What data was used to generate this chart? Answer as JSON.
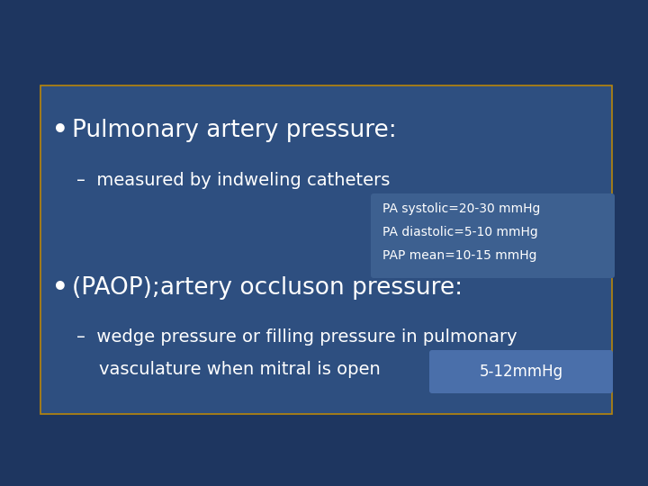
{
  "bg_color": "#2e4f80",
  "slide_bg": "#1e3660",
  "box_bg": "#2e4f80",
  "box_border": "#b8860b",
  "text_color": "#ffffff",
  "info_box1_bg": "#3d6090",
  "info_box2_bg": "#4a6faa",
  "bullet1": "Pulmonary artery pressure:",
  "sub1": "–  measured by indweling catheters",
  "info_lines": [
    "PA systolic=20-30 mmHg",
    "PA diastolic=5-10 mmHg",
    "PAP mean=10-15 mmHg"
  ],
  "bullet2": "(PAOP);artery occluson pressure:",
  "sub2_line1": "–  wedge pressure or filling pressure in pulmonary",
  "sub2_line2": "    vasculature when mitral is open",
  "info2": "5-12mmHg",
  "figw": 7.2,
  "figh": 5.4,
  "dpi": 100
}
